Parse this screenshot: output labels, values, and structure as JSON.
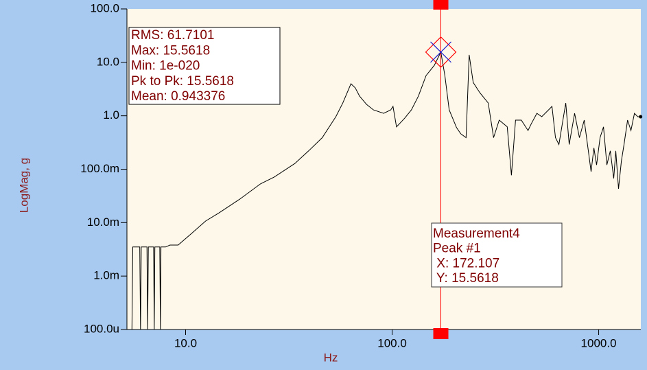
{
  "chart_data": {
    "type": "line",
    "xlabel": "Hz",
    "ylabel": "LogMag, g",
    "xscale": "log",
    "yscale": "log",
    "xlim": [
      5.2,
      1600
    ],
    "ylim": [
      0.0001,
      100
    ],
    "xticks": [
      {
        "value": 10,
        "label": "10.0"
      },
      {
        "value": 100,
        "label": "100.0"
      },
      {
        "value": 1000,
        "label": "1000.0"
      }
    ],
    "yticks": [
      {
        "value": 0.0001,
        "label": "100.0u"
      },
      {
        "value": 0.001,
        "label": "1.0m"
      },
      {
        "value": 0.01,
        "label": "10.0m"
      },
      {
        "value": 0.1,
        "label": "100.0m"
      },
      {
        "value": 1,
        "label": "1.0"
      },
      {
        "value": 10,
        "label": "10.0"
      },
      {
        "value": 100,
        "label": "100.0"
      }
    ],
    "x": [
      5.5,
      5.55,
      6.0,
      6.05,
      6.1,
      6.5,
      6.55,
      6.6,
      7.0,
      7.05,
      7.1,
      7.5,
      7.55,
      7.6,
      8.0,
      8.4,
      9.2,
      10.7,
      12.5,
      14.5,
      18.3,
      23.0,
      26.8,
      33.8,
      39.4,
      45.9,
      53.4,
      57.7,
      60.0,
      63.2,
      66.3,
      69.6,
      75.2,
      81.2,
      91.0,
      98.5,
      101,
      105,
      115,
      124,
      134,
      146,
      160,
      172.107,
      180,
      189,
      205,
      215,
      228,
      236,
      247,
      266,
      292,
      310,
      330,
      361,
      378,
      396,
      422,
      455,
      472,
      502,
      530,
      572,
      594,
      618,
      642,
      667,
      693,
      720,
      765,
      807,
      851,
      891,
      919,
      948,
      977,
      1016,
      1055,
      1096,
      1138,
      1183,
      1210,
      1248,
      1288,
      1327,
      1380,
      1433,
      1490,
      1546,
      1596
    ],
    "series": [
      {
        "name": "Measurement4",
        "color": "#000000",
        "values": [
          0.0001,
          0.0035,
          0.0035,
          0.0001,
          0.0035,
          0.0035,
          0.0001,
          0.0035,
          0.0035,
          0.0001,
          0.0035,
          0.0035,
          0.0001,
          0.0035,
          0.0035,
          0.0038,
          0.0038,
          0.0063,
          0.0107,
          0.0152,
          0.0275,
          0.053,
          0.071,
          0.128,
          0.22,
          0.39,
          0.96,
          1.73,
          2.47,
          3.98,
          3.33,
          2.33,
          1.63,
          1.29,
          1.11,
          1.29,
          1.5,
          0.62,
          0.9,
          1.29,
          2.33,
          5.66,
          8.8,
          15.5618,
          5.66,
          1.29,
          0.6,
          0.46,
          0.39,
          13.8,
          4.2,
          2.7,
          1.73,
          0.39,
          0.83,
          0.62,
          0.077,
          0.83,
          0.83,
          0.53,
          0.71,
          1.11,
          0.96,
          1.29,
          1.5,
          0.39,
          0.29,
          0.71,
          1.73,
          0.29,
          1.11,
          0.39,
          0.83,
          0.22,
          0.09,
          0.25,
          0.12,
          0.39,
          0.62,
          0.12,
          0.22,
          0.067,
          0.22,
          0.043,
          0.14,
          0.29,
          0.83,
          0.53,
          1.11,
          0.96,
          0.96
        ]
      }
    ],
    "cursor": {
      "x": 172.107,
      "y": 15.5618,
      "color": "#ff0000"
    },
    "stats": [
      "RMS: 61.7101",
      "Max: 15.5618",
      "Min: 1e-020",
      "Pk to Pk: 15.5618",
      "Mean: 0.943376"
    ],
    "marker_box": [
      "Measurement4",
      "Peak #1",
      " X: 172.107",
      " Y: 15.5618"
    ]
  }
}
